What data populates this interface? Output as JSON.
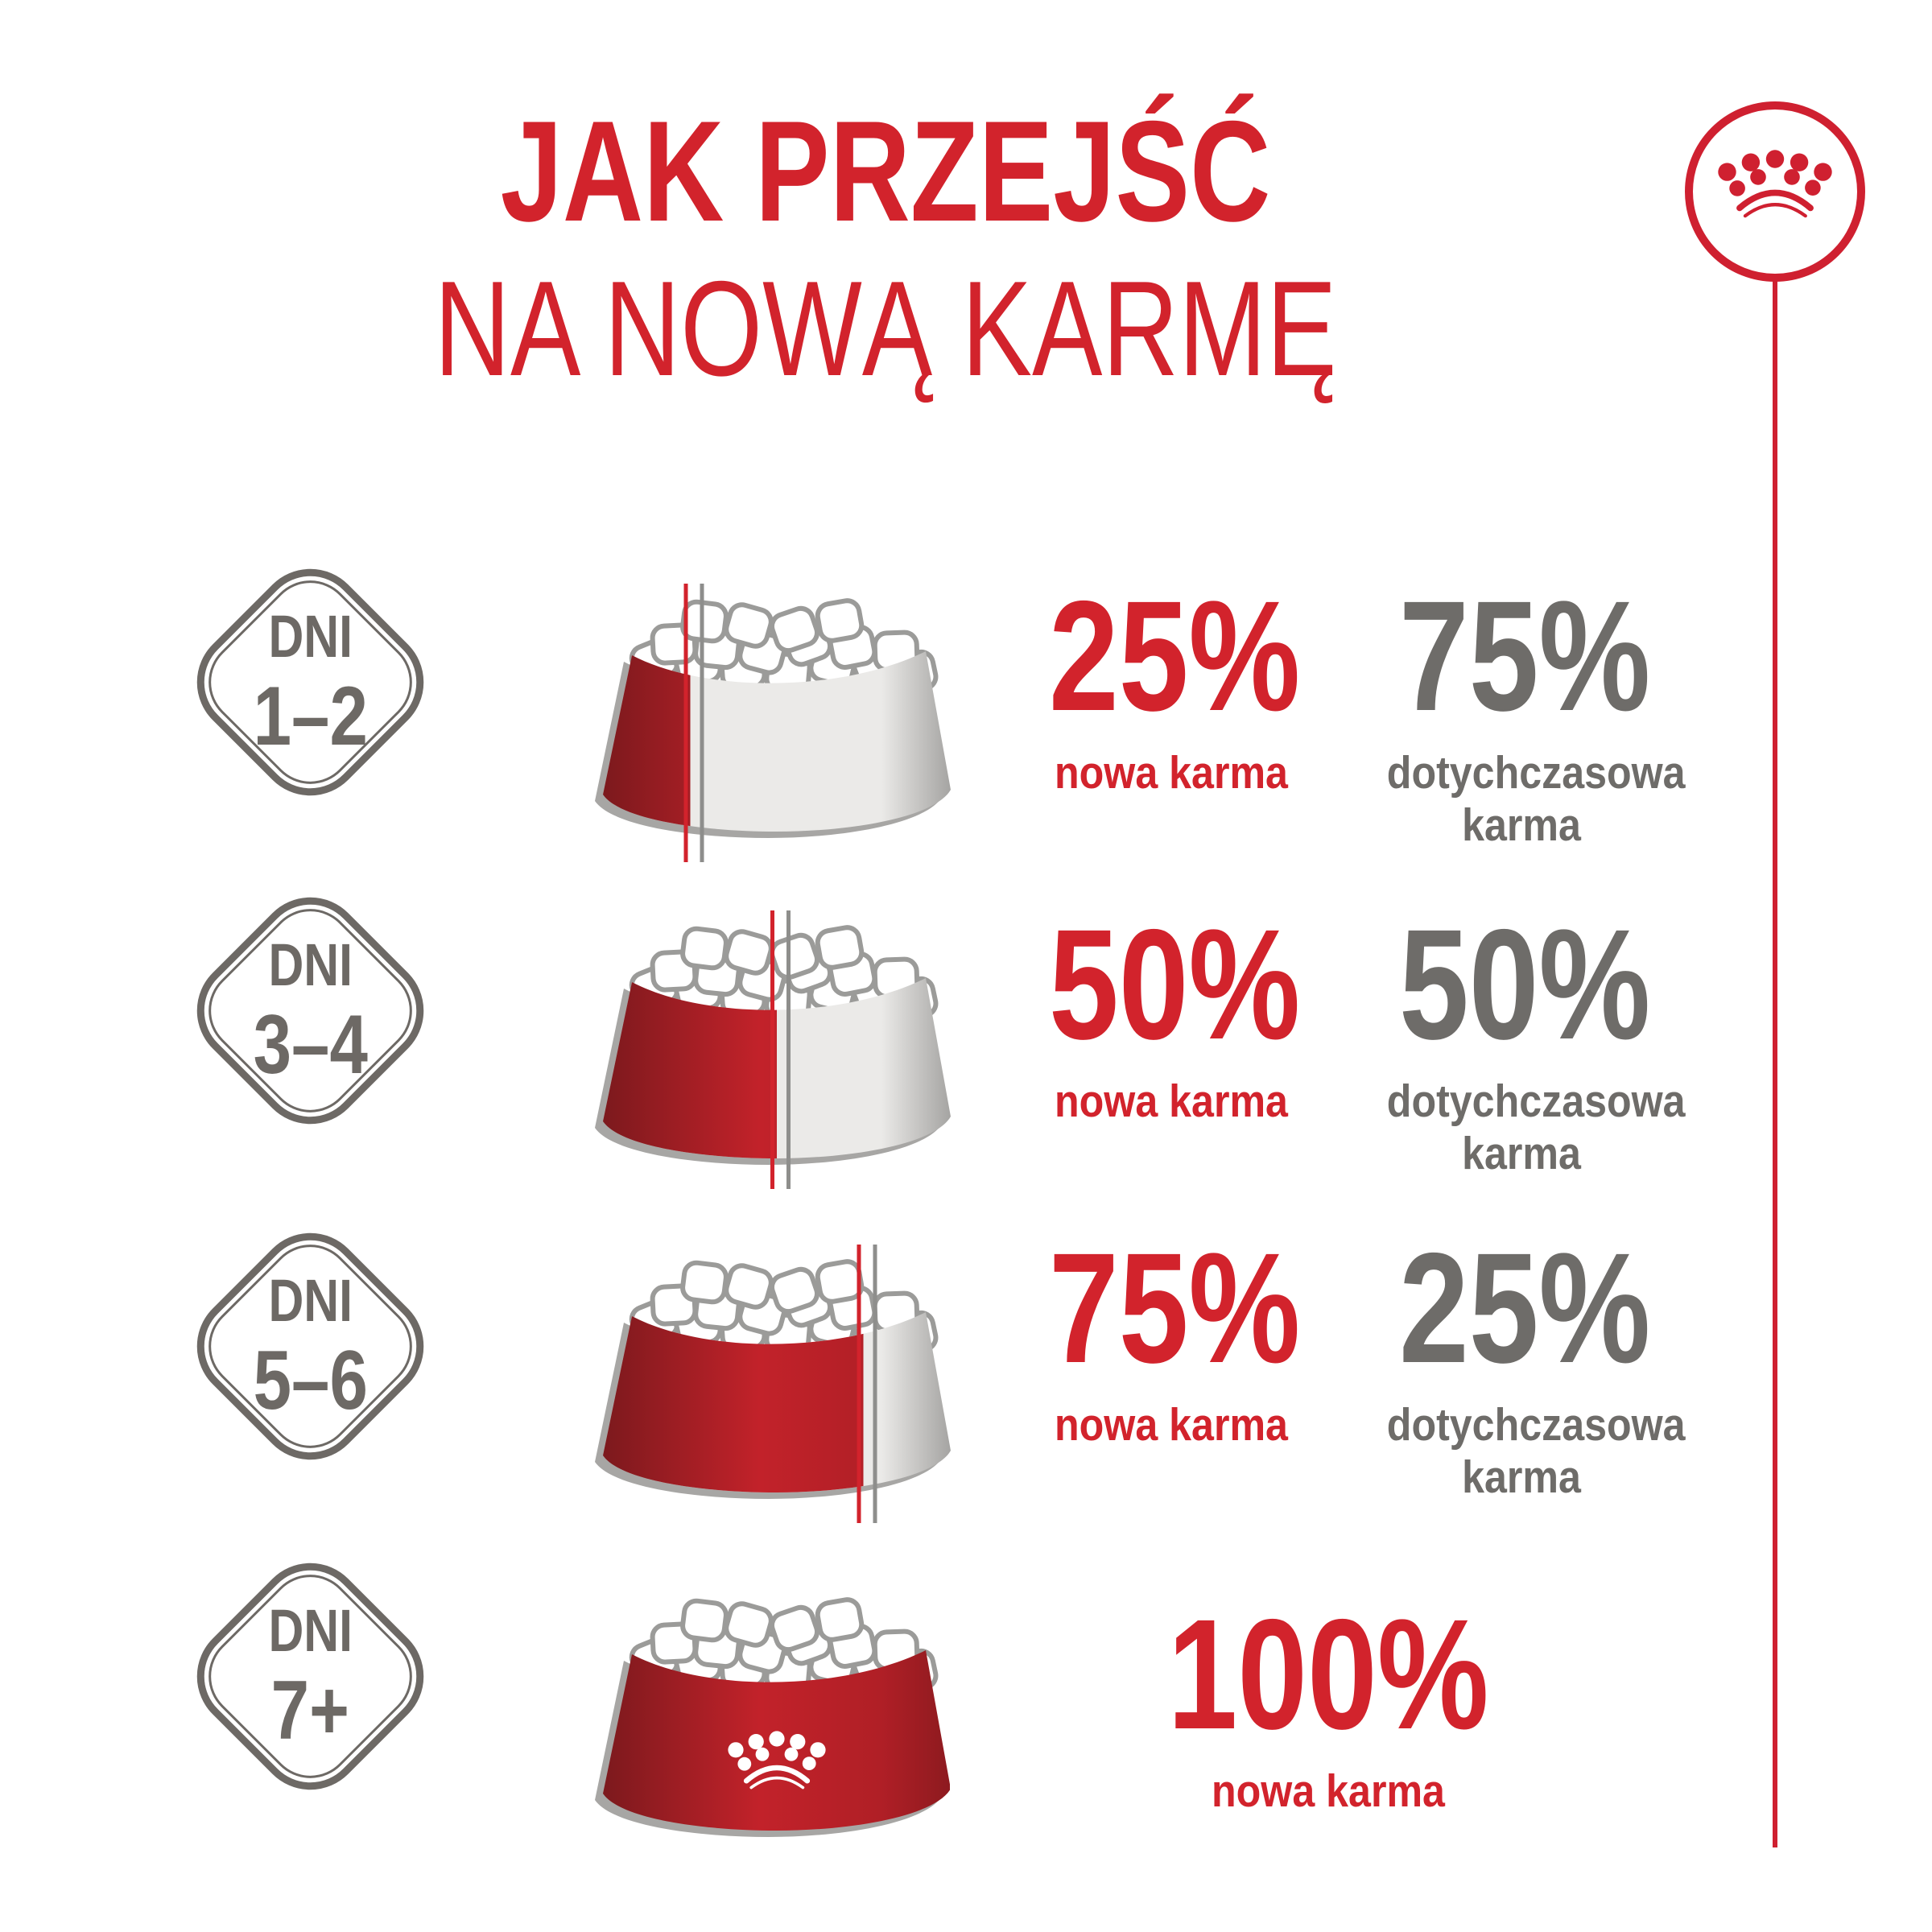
{
  "title": {
    "line1": "JAK PRZEJŚĆ",
    "line2": "NA NOWĄ KARMĘ"
  },
  "logo": {
    "icon": "royal-canin-crown-icon"
  },
  "colors": {
    "red": "#d2232c",
    "logo_red": "#cf2030",
    "bowl_red": "#c2222a",
    "bowl_red_dark": "#7c191d",
    "bowl_red_mid": "#b01f26",
    "bowl_red_edge": "#8d1a1f",
    "bowl_gray": "#ebeae8",
    "bowl_gray_edge": "#a5a4a2",
    "bowl_gray_edge_left": "#c9c8c6",
    "bowl_shadow": "#a7a6a4",
    "kibble_outline": "#9b9b99",
    "line_gray": "#8e8e8c",
    "text_gray": "#6e6c69",
    "badge_gray": "#6d6965"
  },
  "rows": [
    {
      "days_label": "DNI",
      "days_range": "1–2",
      "new_pct": 25,
      "old_pct": 75,
      "new_value": "25%",
      "new_label": "nowa karma",
      "old_value": "75%",
      "old_label_line1": "dotychczasowa",
      "old_label_line2": "karma"
    },
    {
      "days_label": "DNI",
      "days_range": "3–4",
      "new_pct": 50,
      "old_pct": 50,
      "new_value": "50%",
      "new_label": "nowa karma",
      "old_value": "50%",
      "old_label_line1": "dotychczasowa",
      "old_label_line2": "karma"
    },
    {
      "days_label": "DNI",
      "days_range": "5–6",
      "new_pct": 75,
      "old_pct": 25,
      "new_value": "75%",
      "new_label": "nowa karma",
      "old_value": "25%",
      "old_label_line1": "dotychczasowa",
      "old_label_line2": "karma"
    },
    {
      "days_label": "DNI",
      "days_range": "7+",
      "new_pct": 100,
      "old_pct": 0,
      "new_value": "100%",
      "new_label": "nowa karma"
    }
  ]
}
